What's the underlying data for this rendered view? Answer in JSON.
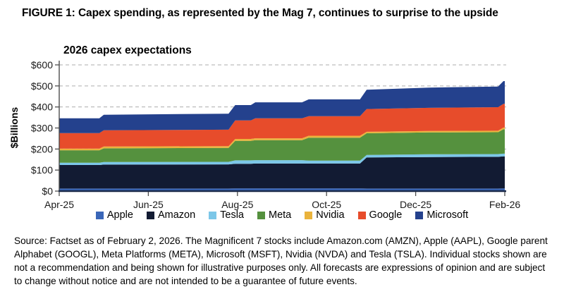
{
  "figure_title": "FIGURE 1: Capex spending,  as represented by the Mag 7, continues to surprise to the upside",
  "source_note": "Source: Factset as of February 2, 2026. The Magnificent 7 stocks include Amazon.com (AMZN), Apple (AAPL), Google parent Alphabet (GOOGL), Meta Platforms (META), Microsoft (MSFT), Nvidia (NVDA) and Tesla (TSLA). Individual stocks shown are not a recommendation and being shown for illustrative purposes only. All forecasts are expressions of opinion and are subject to change without notice and are not intended to be a guarantee of future events.",
  "colors": {
    "gridline": "#adadad",
    "y_axis_line": "#4d4d4d",
    "x_axis_line": "#1b2a4a",
    "tick": "#4d4d4d",
    "tick_label": "#1a1a1a"
  },
  "chart_data": {
    "type": "area",
    "stacked": true,
    "title": "2026 capex expectations",
    "xlabel": "",
    "ylabel": "$Billions",
    "units": "billions USD",
    "ylim": [
      0,
      600
    ],
    "xlim": [
      0,
      10
    ],
    "y_tick_step": 100,
    "y_tick_prefix": "$",
    "grid": "horizontal-dashed",
    "legend_position": "bottom",
    "x_ticks": [
      {
        "x": 0,
        "label": "Apr-25"
      },
      {
        "x": 2,
        "label": "Jun-25"
      },
      {
        "x": 4,
        "label": "Aug-25"
      },
      {
        "x": 6,
        "label": "Oct-25"
      },
      {
        "x": 8,
        "label": "Dec-25"
      },
      {
        "x": 10,
        "label": "Feb-26"
      }
    ],
    "x_unit": "months after Apr-2025 (0 = Apr-25, 10 = Feb-26)",
    "x": [
      0,
      0.9,
      1.0,
      3.8,
      3.95,
      4.3,
      4.4,
      5.45,
      5.6,
      6.75,
      6.9,
      8.3,
      9.85,
      9.97,
      10
    ],
    "series": [
      {
        "name": "Apple",
        "color": "#3a66b8",
        "values": [
          12,
          12,
          12,
          12,
          13,
          13,
          13,
          13,
          13,
          13,
          12,
          12,
          12,
          13,
          13
        ]
      },
      {
        "name": "Amazon",
        "color": "#121b33",
        "values": [
          112,
          112,
          114,
          115,
          117,
          117,
          118,
          118,
          118,
          118,
          148,
          150,
          151,
          152,
          152
        ]
      },
      {
        "name": "Tesla",
        "color": "#7cc7e8",
        "values": [
          11,
          11,
          12,
          12,
          16,
          16,
          16,
          16,
          14,
          14,
          12,
          13,
          13,
          13,
          13
        ]
      },
      {
        "name": "Meta",
        "color": "#55913e",
        "values": [
          59,
          59,
          65,
          66,
          93,
          93,
          95,
          95,
          109,
          109,
          103,
          104,
          104,
          116,
          116
        ]
      },
      {
        "name": "Nvidia",
        "color": "#eab33c",
        "values": [
          8,
          8,
          9,
          9,
          9,
          9,
          9,
          9,
          9,
          9,
          7,
          7,
          7,
          8,
          8
        ]
      },
      {
        "name": "Google",
        "color": "#e74c2b",
        "values": [
          74,
          74,
          77,
          78,
          88,
          88,
          95,
          95,
          93,
          93,
          108,
          110,
          112,
          113,
          113
        ]
      },
      {
        "name": "Microsoft",
        "color": "#24418d",
        "values": [
          70,
          70,
          74,
          76,
          73,
          73,
          76,
          76,
          80,
          80,
          92,
          96,
          98,
          108,
          108
        ]
      }
    ]
  }
}
